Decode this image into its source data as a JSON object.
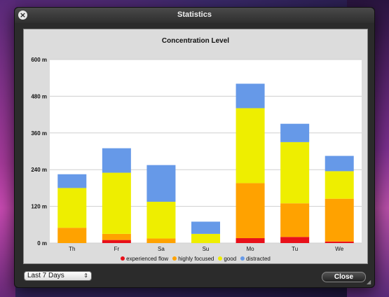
{
  "window": {
    "title": "Statistics"
  },
  "footer": {
    "range_select_value": "Last 7 Days",
    "close_label": "Close"
  },
  "chart_data": {
    "type": "bar",
    "stacked": true,
    "title": "Concentration Level",
    "categories": [
      "Th",
      "Fr",
      "Sa",
      "Su",
      "Mo",
      "Tu",
      "We"
    ],
    "y_ticks": [
      "0 m",
      "120 m",
      "240 m",
      "360 m",
      "480 m",
      "600 m"
    ],
    "ylim": [
      0,
      600
    ],
    "grid": true,
    "legend_position": "bottom",
    "series": [
      {
        "name": "experienced flow",
        "color": "#e8101a",
        "values": [
          0,
          10,
          0,
          0,
          16,
          20,
          5
        ]
      },
      {
        "name": "highly focused",
        "color": "#ffa200",
        "values": [
          50,
          20,
          15,
          0,
          180,
          110,
          140
        ]
      },
      {
        "name": "good",
        "color": "#eeee00",
        "values": [
          130,
          200,
          120,
          30,
          245,
          200,
          90
        ]
      },
      {
        "name": "distracted",
        "color": "#6699e8",
        "values": [
          45,
          80,
          120,
          40,
          80,
          60,
          50
        ]
      }
    ]
  }
}
